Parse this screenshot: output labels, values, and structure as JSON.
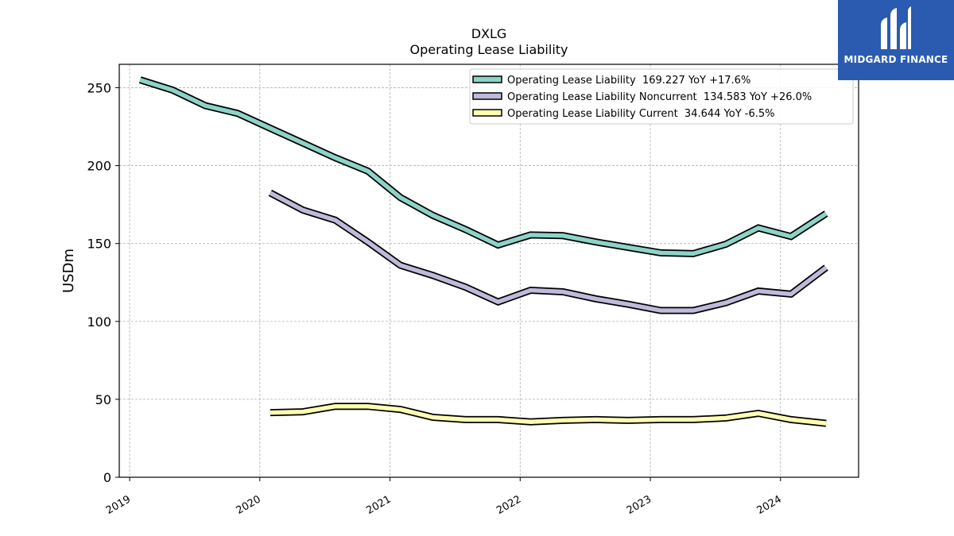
{
  "chart_data": {
    "type": "line",
    "title": "DXLG",
    "subtitle": "Operating Lease Liability",
    "ylabel": "USDm",
    "xlabel": "",
    "ylim": [
      0,
      265
    ],
    "xlim": [
      2018.92,
      2024.6
    ],
    "x_ticks": [
      "2019",
      "2020",
      "2021",
      "2022",
      "2023",
      "2024"
    ],
    "y_ticks": [
      "0",
      "50",
      "100",
      "150",
      "200",
      "250"
    ],
    "grid": true,
    "legend_position": "top-right",
    "series": [
      {
        "name": "Operating Lease Liability  169.227 YoY +17.6%",
        "color": "#8dd3c7",
        "x": [
          2019.08,
          2019.33,
          2019.58,
          2019.83,
          2020.08,
          2020.33,
          2020.58,
          2020.83,
          2021.08,
          2021.33,
          2021.58,
          2021.83,
          2022.08,
          2022.33,
          2022.58,
          2022.83,
          2023.08,
          2023.33,
          2023.58,
          2023.83,
          2024.08,
          2024.35
        ],
        "values": [
          255,
          248.5,
          238.5,
          233.5,
          224,
          214.5,
          205,
          196.5,
          179.5,
          168,
          159,
          149,
          155.5,
          155,
          151,
          147.5,
          144,
          143.5,
          149.5,
          160,
          154.5,
          169.2
        ]
      },
      {
        "name": "Operating Lease Liability Noncurrent  134.583 YoY +26.0%",
        "color": "#bebada",
        "x": [
          2020.08,
          2020.33,
          2020.58,
          2020.83,
          2021.08,
          2021.33,
          2021.58,
          2021.83,
          2022.08,
          2022.33,
          2022.58,
          2022.83,
          2023.08,
          2023.33,
          2023.58,
          2023.83,
          2024.08,
          2024.35
        ],
        "values": [
          182.5,
          171.5,
          165,
          151,
          136,
          129.5,
          122,
          112.5,
          120,
          119,
          114.5,
          111,
          107,
          107,
          112,
          119.5,
          117.5,
          134.6
        ]
      },
      {
        "name": "Operating Lease Liability Current  34.644 YoY -6.5%",
        "color": "#ffffb3",
        "x": [
          2020.08,
          2020.33,
          2020.58,
          2020.83,
          2021.08,
          2021.33,
          2021.58,
          2021.83,
          2022.08,
          2022.33,
          2022.58,
          2022.83,
          2023.08,
          2023.33,
          2023.58,
          2023.83,
          2024.08,
          2024.35
        ],
        "values": [
          41.5,
          42,
          45.5,
          45.5,
          43.5,
          38.5,
          37,
          37,
          35.5,
          36.5,
          37,
          36.5,
          37,
          37,
          38,
          41,
          37,
          34.6
        ]
      }
    ]
  },
  "logo": {
    "text": "MIDGARD FINANCE",
    "color": "#2b5bb0"
  }
}
